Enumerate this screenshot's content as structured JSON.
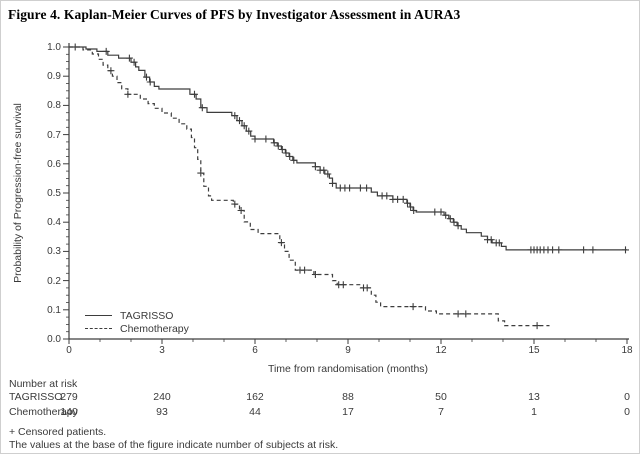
{
  "title": "Figure 4. Kaplan-Meier Curves of PFS by Investigator Assessment in AURA3",
  "colors": {
    "curve": "#3d3d3d",
    "axis": "#3d3d3d",
    "text": "#3a3a3a",
    "title": "#000000",
    "background": "#ffffff",
    "border": "#cfcfcf"
  },
  "chart_data": {
    "type": "line",
    "subtype": "kaplan-meier-step",
    "xlabel": "Time from randomisation (months)",
    "ylabel": "Probability of Progression-free survival",
    "xlim": [
      0,
      18
    ],
    "ylim": [
      0.0,
      1.0
    ],
    "x_ticks": [
      0,
      3,
      6,
      9,
      12,
      15,
      18
    ],
    "x_minor_step": 1,
    "y_ticks": [
      1.0,
      0.9,
      0.8,
      0.7,
      0.6,
      0.5,
      0.4,
      0.3,
      0.2,
      0.1,
      0.0
    ],
    "y_minor_step": 0.025,
    "grid": false,
    "legend_position": "inside-bottom-left",
    "censor_marker": "+",
    "series": [
      {
        "name": "TAGRISSO",
        "line_style": "solid",
        "color": "#3d3d3d",
        "steps": [
          [
            0,
            1.0
          ],
          [
            0.55,
            0.993
          ],
          [
            0.9,
            0.985
          ],
          [
            1.25,
            0.972
          ],
          [
            1.6,
            0.962
          ],
          [
            2.0,
            0.948
          ],
          [
            2.15,
            0.932
          ],
          [
            2.25,
            0.92
          ],
          [
            2.45,
            0.897
          ],
          [
            2.6,
            0.88
          ],
          [
            2.75,
            0.865
          ],
          [
            2.9,
            0.856
          ],
          [
            3.9,
            0.838
          ],
          [
            4.1,
            0.822
          ],
          [
            4.25,
            0.792
          ],
          [
            4.45,
            0.776
          ],
          [
            5.25,
            0.765
          ],
          [
            5.42,
            0.748
          ],
          [
            5.58,
            0.73
          ],
          [
            5.72,
            0.712
          ],
          [
            5.86,
            0.695
          ],
          [
            6.0,
            0.685
          ],
          [
            6.6,
            0.672
          ],
          [
            6.72,
            0.661
          ],
          [
            6.85,
            0.649
          ],
          [
            6.98,
            0.637
          ],
          [
            7.1,
            0.625
          ],
          [
            7.22,
            0.612
          ],
          [
            7.35,
            0.603
          ],
          [
            7.95,
            0.59
          ],
          [
            8.1,
            0.578
          ],
          [
            8.25,
            0.565
          ],
          [
            8.4,
            0.551
          ],
          [
            8.5,
            0.533
          ],
          [
            8.62,
            0.517
          ],
          [
            9.75,
            0.503
          ],
          [
            9.95,
            0.49
          ],
          [
            10.45,
            0.478
          ],
          [
            10.9,
            0.465
          ],
          [
            11.0,
            0.452
          ],
          [
            11.1,
            0.44
          ],
          [
            11.2,
            0.435
          ],
          [
            12.1,
            0.424
          ],
          [
            12.25,
            0.412
          ],
          [
            12.4,
            0.4
          ],
          [
            12.52,
            0.388
          ],
          [
            12.65,
            0.376
          ],
          [
            12.82,
            0.364
          ],
          [
            13.3,
            0.352
          ],
          [
            13.5,
            0.34
          ],
          [
            13.65,
            0.329
          ],
          [
            13.95,
            0.317
          ],
          [
            14.1,
            0.305
          ],
          [
            18,
            0.305
          ]
        ],
        "censor_times": [
          0.2,
          1.2,
          1.95,
          2.1,
          2.5,
          2.62,
          4.05,
          4.3,
          5.35,
          5.5,
          5.65,
          5.8,
          6.0,
          6.35,
          6.62,
          6.75,
          6.88,
          7.0,
          7.12,
          7.25,
          7.95,
          8.1,
          8.22,
          8.35,
          8.5,
          8.75,
          8.9,
          9.05,
          9.4,
          9.6,
          10.1,
          10.25,
          10.45,
          10.6,
          10.78,
          10.92,
          11.02,
          11.12,
          11.8,
          12.0,
          12.15,
          12.3,
          12.42,
          12.55,
          13.5,
          13.62,
          13.78,
          13.88,
          14.9,
          15.0,
          15.1,
          15.2,
          15.32,
          15.45,
          15.6,
          15.8,
          16.6,
          16.9,
          17.95
        ]
      },
      {
        "name": "Chemotherapy",
        "line_style": "dashed",
        "color": "#3d3d3d",
        "steps": [
          [
            0,
            1.0
          ],
          [
            0.45,
            0.99
          ],
          [
            0.75,
            0.976
          ],
          [
            0.95,
            0.958
          ],
          [
            1.1,
            0.938
          ],
          [
            1.25,
            0.919
          ],
          [
            1.4,
            0.9
          ],
          [
            1.55,
            0.878
          ],
          [
            1.7,
            0.857
          ],
          [
            1.9,
            0.838
          ],
          [
            2.3,
            0.822
          ],
          [
            2.55,
            0.806
          ],
          [
            2.75,
            0.79
          ],
          [
            3.0,
            0.774
          ],
          [
            3.3,
            0.756
          ],
          [
            3.55,
            0.737
          ],
          [
            3.8,
            0.719
          ],
          [
            3.95,
            0.69
          ],
          [
            4.05,
            0.655
          ],
          [
            4.15,
            0.615
          ],
          [
            4.25,
            0.568
          ],
          [
            4.35,
            0.523
          ],
          [
            4.5,
            0.49
          ],
          [
            4.6,
            0.475
          ],
          [
            5.3,
            0.462
          ],
          [
            5.5,
            0.44
          ],
          [
            5.65,
            0.401
          ],
          [
            5.85,
            0.375
          ],
          [
            6.1,
            0.361
          ],
          [
            6.8,
            0.33
          ],
          [
            6.95,
            0.3
          ],
          [
            7.1,
            0.27
          ],
          [
            7.3,
            0.236
          ],
          [
            7.9,
            0.221
          ],
          [
            8.5,
            0.2
          ],
          [
            8.65,
            0.186
          ],
          [
            9.4,
            0.175
          ],
          [
            9.75,
            0.15
          ],
          [
            9.9,
            0.126
          ],
          [
            10.05,
            0.111
          ],
          [
            11.5,
            0.096
          ],
          [
            11.85,
            0.086
          ],
          [
            13.85,
            0.062
          ],
          [
            14.05,
            0.046
          ],
          [
            15.5,
            0.046
          ]
        ],
        "censor_times": [
          1.35,
          1.9,
          4.25,
          5.35,
          5.55,
          6.85,
          7.45,
          7.6,
          7.95,
          8.7,
          8.85,
          9.5,
          9.62,
          11.1,
          12.55,
          12.8,
          15.1
        ]
      }
    ]
  },
  "risk_table": {
    "header": "Number at risk",
    "time_points": [
      0,
      3,
      6,
      9,
      12,
      15,
      18
    ],
    "rows": [
      {
        "label": "TAGRISSO",
        "counts": [
          279,
          240,
          162,
          88,
          50,
          13,
          0
        ]
      },
      {
        "label": "Chemotherapy",
        "counts": [
          140,
          93,
          44,
          17,
          7,
          1,
          0
        ]
      }
    ]
  },
  "footnotes": [
    "+ Censored patients.",
    "The values at the base of the figure indicate number of subjects at risk."
  ]
}
